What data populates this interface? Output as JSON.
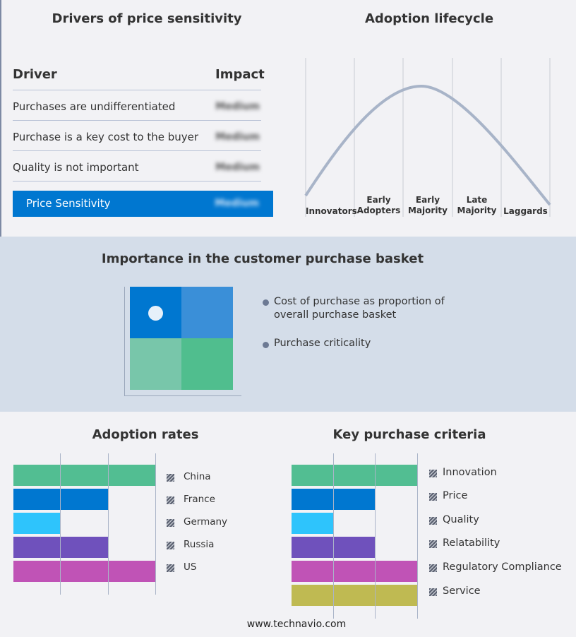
{
  "drivers": {
    "title": "Drivers of price sensitivity",
    "col_driver": "Driver",
    "col_impact": "Impact",
    "rows": [
      {
        "driver": "Purchases are undifferentiated",
        "impact": "Medium"
      },
      {
        "driver": "Purchase is a key cost to the buyer",
        "impact": "Medium"
      },
      {
        "driver": "Quality is not important",
        "impact": "Medium"
      }
    ],
    "summary": {
      "label": "Price Sensitivity",
      "impact": "Medium"
    }
  },
  "lifecycle": {
    "title": "Adoption lifecycle",
    "stages": [
      "Innovators",
      "Early Adopters",
      "Early Majority",
      "Late Majority",
      "Laggards"
    ],
    "stage_lines": [
      [
        "Innovators"
      ],
      [
        "Early",
        "Adopters"
      ],
      [
        "Early",
        "Majority"
      ],
      [
        "Late",
        "Majority"
      ],
      [
        "Laggards"
      ]
    ]
  },
  "basket": {
    "title": "Importance in the customer purchase basket",
    "legend": [
      "Cost of purchase as proportion of overall purchase basket",
      "Purchase criticality"
    ],
    "colors": [
      "#0077d0",
      "#3a8fd8",
      "#78c6aa",
      "#50be8e"
    ],
    "marker": "top-left"
  },
  "chart_data": [
    {
      "type": "bar",
      "orientation": "horizontal",
      "title": "Adoption rates",
      "categories": [
        "China",
        "France",
        "Germany",
        "Russia",
        "US"
      ],
      "values": [
        3,
        2,
        1,
        2,
        3
      ],
      "xlim": [
        0,
        3
      ],
      "grid": true,
      "legend": "right",
      "colors": [
        "#52be92",
        "#0077d0",
        "#2ec4fc",
        "#6f51bc",
        "#c053b6"
      ]
    },
    {
      "type": "bar",
      "orientation": "horizontal",
      "title": "Key purchase criteria",
      "categories": [
        "Innovation",
        "Price",
        "Quality",
        "Relatability",
        "Regulatory Compliance",
        "Service"
      ],
      "values": [
        3,
        2,
        1,
        2,
        3,
        3
      ],
      "xlim": [
        0,
        3
      ],
      "grid": true,
      "legend": "right",
      "colors": [
        "#52be92",
        "#0077d0",
        "#2ec4fc",
        "#6f51bc",
        "#c053b6",
        "#bfba52"
      ]
    }
  ],
  "footer": "www.technavio.com"
}
